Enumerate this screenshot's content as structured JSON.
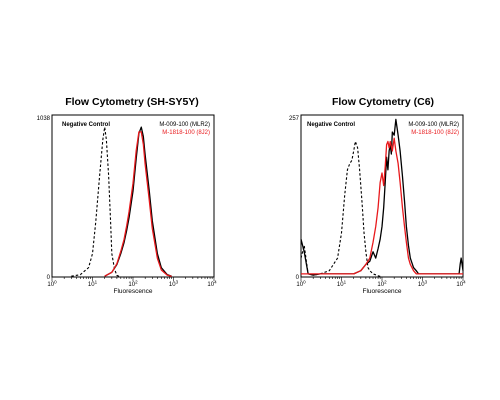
{
  "chart_data": [
    {
      "type": "line",
      "title": "Flow Cytometry (SH-SY5Y)",
      "xlabel": "Fluorescence",
      "ylabel": "",
      "x_scale": "log",
      "xlim": [
        1,
        10000
      ],
      "ylim": [
        0,
        1038
      ],
      "y_max_label": "1038",
      "y_min_label": "0",
      "x_ticks": [
        {
          "base": "10",
          "exp": "0"
        },
        {
          "base": "10",
          "exp": "1"
        },
        {
          "base": "10",
          "exp": "2"
        },
        {
          "base": "10",
          "exp": "3"
        },
        {
          "base": "10",
          "exp": "4"
        }
      ],
      "legend_position": "top-right",
      "series": [
        {
          "name": "Negative Control",
          "color": "#000000",
          "style": "dashed",
          "x": [
            3,
            5,
            8,
            10,
            12,
            15,
            18,
            20,
            22,
            25,
            28,
            30,
            35,
            40,
            50
          ],
          "y": [
            5,
            15,
            60,
            150,
            350,
            650,
            880,
            960,
            880,
            650,
            350,
            150,
            50,
            10,
            0
          ]
        },
        {
          "name": "M-009-100 (MLR2)",
          "color": "#000000",
          "style": "solid",
          "x": [
            20,
            30,
            40,
            50,
            60,
            70,
            80,
            100,
            120,
            140,
            160,
            180,
            200,
            250,
            300,
            400,
            500,
            700,
            900
          ],
          "y": [
            5,
            30,
            80,
            150,
            220,
            300,
            380,
            550,
            760,
            920,
            960,
            900,
            780,
            560,
            360,
            150,
            60,
            15,
            5
          ]
        },
        {
          "name": "M-1818-100 (8J2)",
          "color": "#e8191c",
          "style": "solid",
          "x": [
            20,
            30,
            40,
            50,
            60,
            70,
            80,
            100,
            120,
            140,
            160,
            180,
            200,
            250,
            300,
            400,
            500,
            700,
            900
          ],
          "y": [
            5,
            30,
            85,
            165,
            240,
            330,
            420,
            600,
            810,
            930,
            930,
            850,
            720,
            500,
            310,
            120,
            45,
            12,
            4
          ]
        }
      ]
    },
    {
      "type": "line",
      "title": "Flow Cytometry (C6)",
      "xlabel": "Fluorescence",
      "ylabel": "",
      "x_scale": "log",
      "xlim": [
        1,
        10000
      ],
      "ylim": [
        0,
        257
      ],
      "y_max_label": "257",
      "y_min_label": "0",
      "x_ticks": [
        {
          "base": "10",
          "exp": "0"
        },
        {
          "base": "10",
          "exp": "1"
        },
        {
          "base": "10",
          "exp": "2"
        },
        {
          "base": "10",
          "exp": "3"
        },
        {
          "base": "10",
          "exp": "4"
        }
      ],
      "legend_position": "top-right",
      "series": [
        {
          "name": "Negative Control",
          "color": "#000000",
          "style": "dashed",
          "x": [
            1,
            1.2,
            1.5,
            2,
            3,
            5,
            8,
            10,
            12,
            14,
            16,
            18,
            20,
            22,
            25,
            28,
            32,
            36,
            40,
            45,
            50,
            60,
            80,
            100
          ],
          "y": [
            30,
            50,
            5,
            3,
            5,
            10,
            30,
            70,
            130,
            170,
            180,
            185,
            200,
            215,
            205,
            170,
            120,
            70,
            40,
            15,
            10,
            5,
            2,
            0
          ]
        },
        {
          "name": "M-009-100 (MLR2)",
          "color": "#000000",
          "style": "solid",
          "x": [
            1,
            1.2,
            1.5,
            2,
            3,
            5,
            8,
            10,
            15,
            20,
            30,
            40,
            50,
            60,
            70,
            80,
            90,
            100,
            110,
            120,
            130,
            140,
            150,
            160,
            170,
            180,
            200,
            220,
            250,
            280,
            320,
            360,
            400,
            450,
            500,
            600,
            700,
            800,
            1000,
            1500,
            2000,
            3000,
            5000,
            7000,
            8000,
            8500,
            9000,
            9500,
            10000
          ],
          "y": [
            60,
            40,
            5,
            3,
            5,
            5,
            5,
            5,
            5,
            5,
            10,
            20,
            25,
            40,
            30,
            45,
            60,
            80,
            110,
            150,
            190,
            170,
            200,
            210,
            195,
            230,
            225,
            250,
            225,
            200,
            160,
            120,
            80,
            50,
            30,
            15,
            10,
            5,
            5,
            5,
            5,
            5,
            5,
            5,
            5,
            20,
            30,
            20,
            10
          ]
        },
        {
          "name": "M-1818-100 (8J2)",
          "color": "#e8191c",
          "style": "solid",
          "x": [
            1,
            1.5,
            2,
            3,
            5,
            8,
            10,
            15,
            20,
            30,
            40,
            50,
            60,
            70,
            80,
            90,
            100,
            110,
            120,
            130,
            140,
            150,
            160,
            180,
            200,
            220,
            250,
            280,
            320,
            360,
            400,
            450,
            500,
            600,
            700,
            800,
            1000,
            1500,
            2000,
            3000,
            5000,
            8000,
            10000
          ],
          "y": [
            5,
            5,
            5,
            5,
            5,
            5,
            5,
            5,
            5,
            10,
            20,
            30,
            55,
            80,
            110,
            150,
            165,
            145,
            175,
            210,
            215,
            205,
            215,
            200,
            220,
            200,
            180,
            150,
            110,
            80,
            55,
            30,
            20,
            10,
            5,
            5,
            5,
            5,
            5,
            5,
            5,
            5,
            5
          ]
        }
      ]
    }
  ]
}
